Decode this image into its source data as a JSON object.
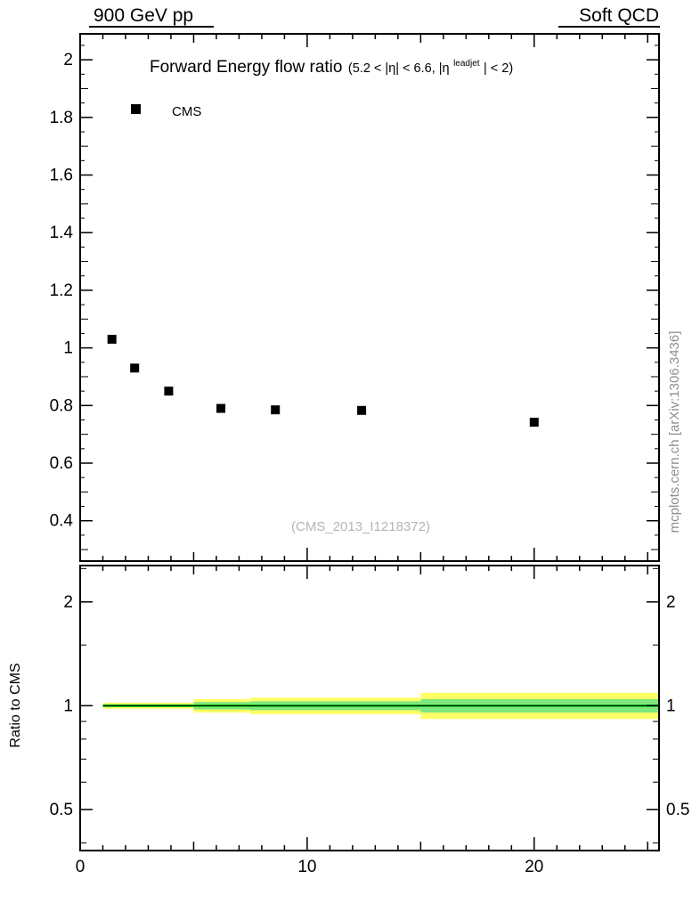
{
  "header": {
    "left": "900 GeV pp",
    "right": "Soft QCD"
  },
  "chart_data": {
    "type": "scatter",
    "title": "Forward Energy flow ratio",
    "subtitle_pre": "(5.2 < |η| < 6.6, |η",
    "subtitle_sup": "leadjet",
    "subtitle_post": "| < 2)",
    "legend": [
      {
        "label": "CMS",
        "marker": "square",
        "color": "#000000"
      }
    ],
    "watermark": "(CMS_2013_I1218372)",
    "side_label": "mcplots.cern.ch [arXiv:1306.3436]",
    "xlim": [
      0,
      25.5
    ],
    "xticks": [
      0,
      10,
      20
    ],
    "x_minor_step": 1,
    "top_panel": {
      "ylim": [
        0.26,
        2.09
      ],
      "yticks": [
        0.4,
        0.6,
        0.8,
        1,
        1.2,
        1.4,
        1.6,
        1.8,
        2
      ],
      "y_minor_step": 0.05,
      "series": [
        {
          "name": "CMS",
          "points": [
            {
              "x": 1.4,
              "y": 1.03
            },
            {
              "x": 2.4,
              "y": 0.93
            },
            {
              "x": 3.9,
              "y": 0.85
            },
            {
              "x": 6.2,
              "y": 0.79
            },
            {
              "x": 8.6,
              "y": 0.785
            },
            {
              "x": 12.4,
              "y": 0.783
            },
            {
              "x": 20.0,
              "y": 0.742
            }
          ]
        }
      ]
    },
    "bottom_panel": {
      "ylabel": "Ratio to CMS",
      "yscale": "log",
      "ylim": [
        0.38,
        2.55
      ],
      "yticks": [
        0.5,
        1,
        2
      ],
      "yticks_minor": [
        0.4,
        0.6,
        0.7,
        0.8,
        0.9,
        1.5,
        2.5
      ],
      "reference_line": 1,
      "bands": [
        {
          "x0": 1.0,
          "x1": 5.0,
          "outer": [
            0.98,
            1.02
          ],
          "inner": [
            0.99,
            1.01
          ]
        },
        {
          "x0": 5.0,
          "x1": 7.5,
          "outer": [
            0.955,
            1.045
          ],
          "inner": [
            0.975,
            1.025
          ]
        },
        {
          "x0": 7.5,
          "x1": 15.0,
          "outer": [
            0.945,
            1.055
          ],
          "inner": [
            0.97,
            1.03
          ]
        },
        {
          "x0": 15.0,
          "x1": 25.5,
          "outer": [
            0.915,
            1.09
          ],
          "inner": [
            0.955,
            1.045
          ]
        }
      ]
    },
    "colors": {
      "band_outer": "#ffff66",
      "band_inner": "#7de87d",
      "center_line": "#00bf00",
      "marker": "#000000"
    }
  }
}
